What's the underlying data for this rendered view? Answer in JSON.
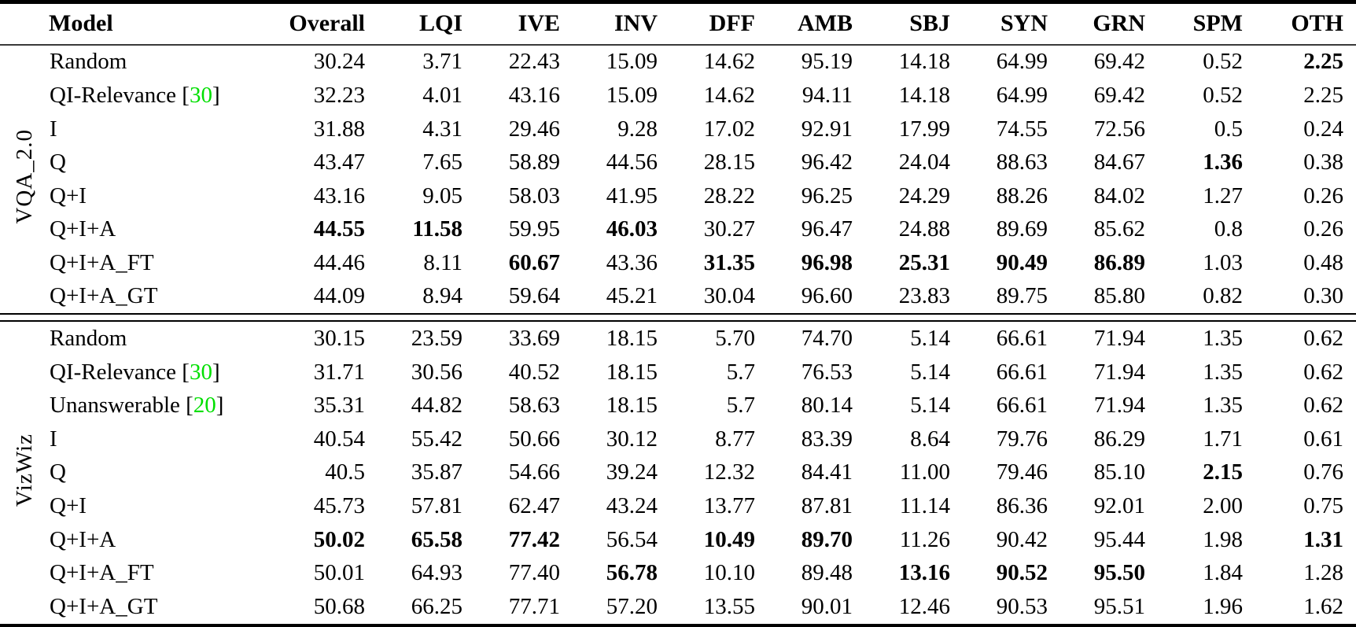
{
  "meta": {
    "cite_color": "#00df00",
    "cite_brackets": [
      "[",
      "]"
    ]
  },
  "table": {
    "columns": [
      "Model",
      "Overall",
      "LQI",
      "IVE",
      "INV",
      "DFF",
      "AMB",
      "SBJ",
      "SYN",
      "GRN",
      "SPM",
      "OTH"
    ],
    "groups": [
      {
        "label": "VQA_2.0",
        "rows": [
          {
            "model": "Random",
            "cite": null,
            "values": [
              "30.24",
              "3.71",
              "22.43",
              "15.09",
              "14.62",
              "95.19",
              "14.18",
              "64.99",
              "69.42",
              "0.52",
              "2.25"
            ],
            "bold": [
              10
            ]
          },
          {
            "model": "QI-Relevance",
            "cite": "30",
            "values": [
              "32.23",
              "4.01",
              "43.16",
              "15.09",
              "14.62",
              "94.11",
              "14.18",
              "64.99",
              "69.42",
              "0.52",
              "2.25"
            ],
            "bold": []
          },
          {
            "model": "I",
            "cite": null,
            "values": [
              "31.88",
              "4.31",
              "29.46",
              "9.28",
              "17.02",
              "92.91",
              "17.99",
              "74.55",
              "72.56",
              "0.5",
              "0.24"
            ],
            "bold": []
          },
          {
            "model": "Q",
            "cite": null,
            "values": [
              "43.47",
              "7.65",
              "58.89",
              "44.56",
              "28.15",
              "96.42",
              "24.04",
              "88.63",
              "84.67",
              "1.36",
              "0.38"
            ],
            "bold": [
              9
            ]
          },
          {
            "model": "Q+I",
            "cite": null,
            "values": [
              "43.16",
              "9.05",
              "58.03",
              "41.95",
              "28.22",
              "96.25",
              "24.29",
              "88.26",
              "84.02",
              "1.27",
              "0.26"
            ],
            "bold": []
          },
          {
            "model": "Q+I+A",
            "cite": null,
            "values": [
              "44.55",
              "11.58",
              "59.95",
              "46.03",
              "30.27",
              "96.47",
              "24.88",
              "89.69",
              "85.62",
              "0.8",
              "0.26"
            ],
            "bold": [
              0,
              1,
              3
            ]
          },
          {
            "model": "Q+I+A_FT",
            "cite": null,
            "values": [
              "44.46",
              "8.11",
              "60.67",
              "43.36",
              "31.35",
              "96.98",
              "25.31",
              "90.49",
              "86.89",
              "1.03",
              "0.48"
            ],
            "bold": [
              2,
              4,
              5,
              6,
              7,
              8
            ]
          },
          {
            "model": "Q+I+A_GT",
            "cite": null,
            "values": [
              "44.09",
              "8.94",
              "59.64",
              "45.21",
              "30.04",
              "96.60",
              "23.83",
              "89.75",
              "85.80",
              "0.82",
              "0.30"
            ],
            "bold": []
          }
        ]
      },
      {
        "label": "VizWiz",
        "rows": [
          {
            "model": "Random",
            "cite": null,
            "values": [
              "30.15",
              "23.59",
              "33.69",
              "18.15",
              "5.70",
              "74.70",
              "5.14",
              "66.61",
              "71.94",
              "1.35",
              "0.62"
            ],
            "bold": []
          },
          {
            "model": "QI-Relevance",
            "cite": "30",
            "values": [
              "31.71",
              "30.56",
              "40.52",
              "18.15",
              "5.7",
              "76.53",
              "5.14",
              "66.61",
              "71.94",
              "1.35",
              "0.62"
            ],
            "bold": []
          },
          {
            "model": "Unanswerable",
            "cite": "20",
            "values": [
              "35.31",
              "44.82",
              "58.63",
              "18.15",
              "5.7",
              "80.14",
              "5.14",
              "66.61",
              "71.94",
              "1.35",
              "0.62"
            ],
            "bold": []
          },
          {
            "model": "I",
            "cite": null,
            "values": [
              "40.54",
              "55.42",
              "50.66",
              "30.12",
              "8.77",
              "83.39",
              "8.64",
              "79.76",
              "86.29",
              "1.71",
              "0.61"
            ],
            "bold": []
          },
          {
            "model": "Q",
            "cite": null,
            "values": [
              "40.5",
              "35.87",
              "54.66",
              "39.24",
              "12.32",
              "84.41",
              "11.00",
              "79.46",
              "85.10",
              "2.15",
              "0.76"
            ],
            "bold": [
              9
            ]
          },
          {
            "model": "Q+I",
            "cite": null,
            "values": [
              "45.73",
              "57.81",
              "62.47",
              "43.24",
              "13.77",
              "87.81",
              "11.14",
              "86.36",
              "92.01",
              "2.00",
              "0.75"
            ],
            "bold": []
          },
          {
            "model": "Q+I+A",
            "cite": null,
            "values": [
              "50.02",
              "65.58",
              "77.42",
              "56.54",
              "10.49",
              "89.70",
              "11.26",
              "90.42",
              "95.44",
              "1.98",
              "1.31"
            ],
            "bold": [
              0,
              1,
              2,
              4,
              5,
              10
            ]
          },
          {
            "model": "Q+I+A_FT",
            "cite": null,
            "values": [
              "50.01",
              "64.93",
              "77.40",
              "56.78",
              "10.10",
              "89.48",
              "13.16",
              "90.52",
              "95.50",
              "1.84",
              "1.28"
            ],
            "bold": [
              3,
              6,
              7,
              8
            ]
          },
          {
            "model": "Q+I+A_GT",
            "cite": null,
            "values": [
              "50.68",
              "66.25",
              "77.71",
              "57.20",
              "13.55",
              "90.01",
              "12.46",
              "90.53",
              "95.51",
              "1.96",
              "1.62"
            ],
            "bold": []
          }
        ]
      }
    ]
  }
}
